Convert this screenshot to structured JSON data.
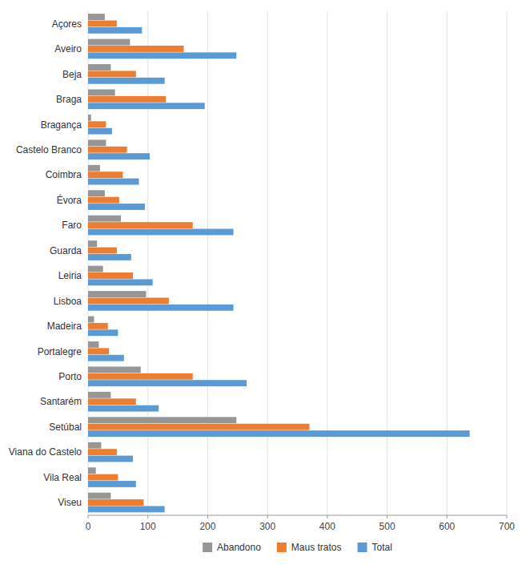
{
  "chart_data": {
    "type": "bar",
    "orientation": "horizontal",
    "categories": [
      "Açores",
      "Aveiro",
      "Beja",
      "Braga",
      "Bragança",
      "Castelo Branco",
      "Coimbra",
      "Évora",
      "Faro",
      "Guarda",
      "Leiria",
      "Lisboa",
      "Madeira",
      "Portalegre",
      "Porto",
      "Santarém",
      "Setúbal",
      "Viana do Castelo",
      "Vila Real",
      "Viseu"
    ],
    "series": [
      {
        "name": "Abandono",
        "color": "#969696",
        "values": [
          28,
          70,
          38,
          45,
          5,
          30,
          20,
          28,
          55,
          15,
          25,
          97,
          10,
          18,
          88,
          38,
          248,
          22,
          13,
          38
        ]
      },
      {
        "name": "Maus tratos",
        "color": "#ed7d31",
        "values": [
          48,
          160,
          80,
          130,
          30,
          65,
          58,
          52,
          175,
          48,
          75,
          135,
          33,
          35,
          175,
          80,
          370,
          48,
          50,
          93
        ]
      },
      {
        "name": "Total",
        "color": "#5b9bd5",
        "values": [
          90,
          248,
          128,
          195,
          40,
          103,
          85,
          95,
          243,
          72,
          108,
          243,
          50,
          60,
          265,
          118,
          638,
          75,
          80,
          128
        ]
      }
    ],
    "xlim": [
      0,
      700
    ],
    "xticks": [
      0,
      100,
      200,
      300,
      400,
      500,
      600,
      700
    ],
    "grid": true,
    "legend": "bottom"
  }
}
